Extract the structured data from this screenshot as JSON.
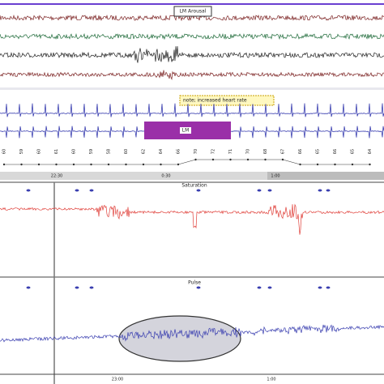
{
  "recording": {
    "marker_label": "LM Arousal",
    "note": "note; increased heart rate",
    "event_label": "LM",
    "hr_values": [
      "60",
      "59",
      "60",
      "61",
      "60",
      "59",
      "58",
      "60",
      "62",
      "64",
      "66",
      "70",
      "72",
      "71",
      "70",
      "68",
      "67",
      "66",
      "65",
      "66",
      "65",
      "64"
    ],
    "timeline_ticks": [
      "22:30",
      "0:30",
      "1:00"
    ]
  },
  "saturation": {
    "title": "Saturation"
  },
  "pulse": {
    "title": "Pulse",
    "time_ticks": [
      "23:00",
      "1:00"
    ]
  }
}
